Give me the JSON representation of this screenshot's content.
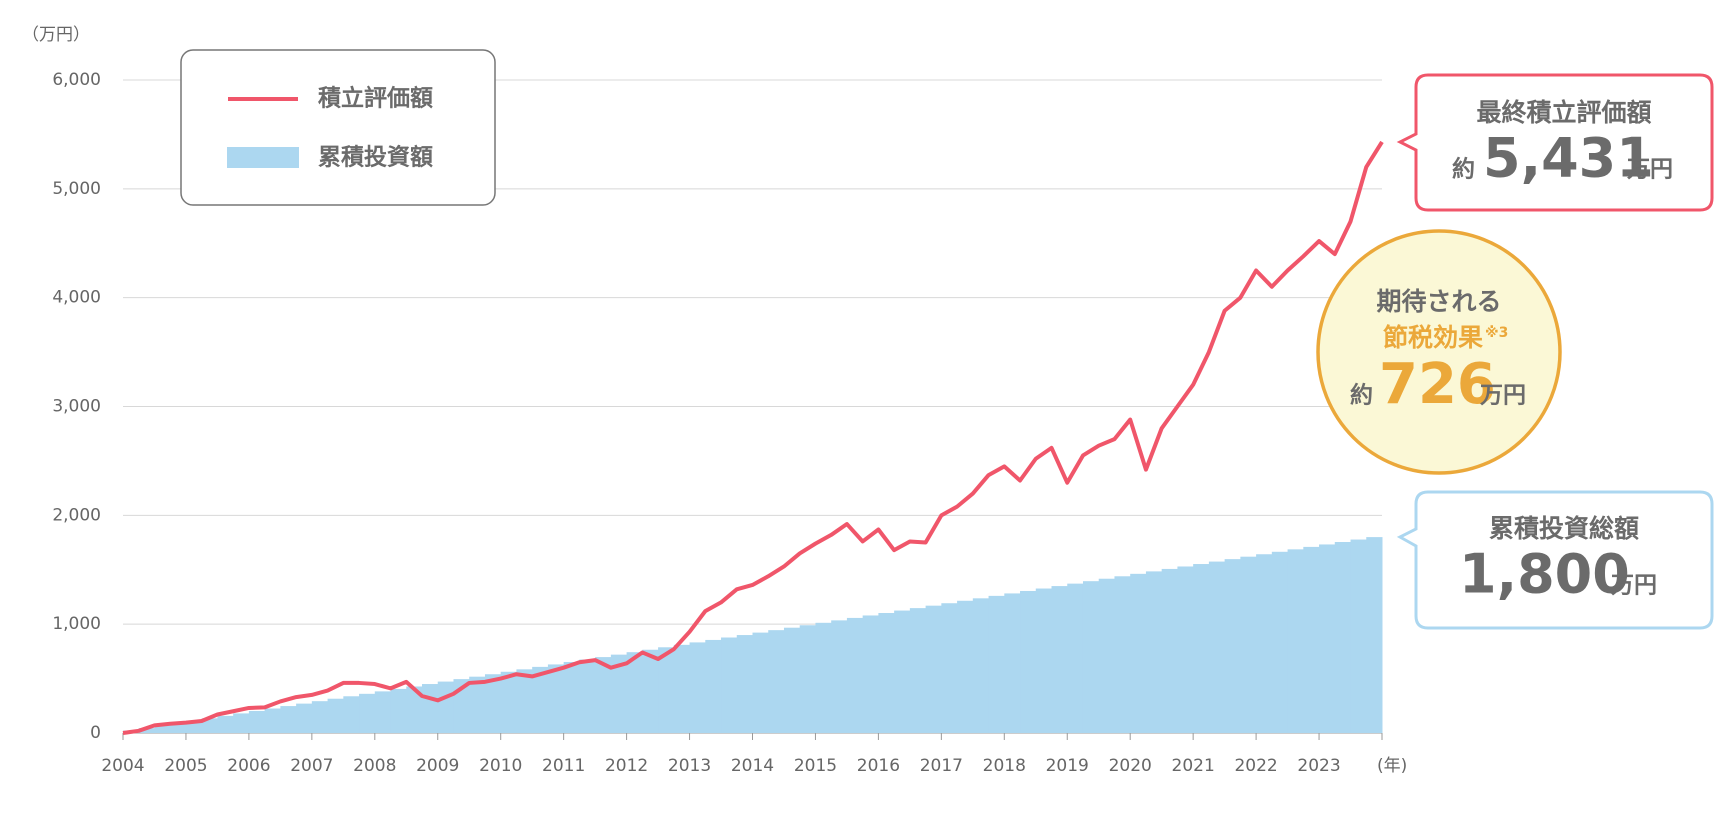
{
  "chart_data": {
    "type": "line",
    "y_label": "（万円）",
    "x_label": "(年)",
    "xlim": [
      2004,
      2024
    ],
    "xticks": [
      2004,
      2005,
      2006,
      2007,
      2008,
      2009,
      2010,
      2011,
      2012,
      2013,
      2014,
      2015,
      2016,
      2017,
      2018,
      2019,
      2020,
      2021,
      2022,
      2023
    ],
    "ylim": [
      0,
      6000
    ],
    "yticks": [
      0,
      {
        "value": 1000,
        "label": "1,000"
      },
      {
        "value": 2000,
        "label": "2,000"
      },
      {
        "value": 3000,
        "label": "3,000"
      },
      {
        "value": 4000,
        "label": "4,000"
      },
      {
        "value": 5000,
        "label": "5,000"
      },
      {
        "value": 6000,
        "label": "6,000"
      }
    ],
    "grid": true,
    "series": [
      {
        "name": "積立評価額",
        "color": "#f0566a",
        "type": "line",
        "x": [
          2004,
          2004.25,
          2004.5,
          2004.75,
          2005,
          2005.25,
          2005.5,
          2005.75,
          2006,
          2006.25,
          2006.5,
          2006.75,
          2007,
          2007.25,
          2007.5,
          2007.75,
          2008,
          2008.25,
          2008.5,
          2008.75,
          2009,
          2009.25,
          2009.5,
          2009.75,
          2010,
          2010.25,
          2010.5,
          2010.75,
          2011,
          2011.25,
          2011.5,
          2011.75,
          2012,
          2012.25,
          2012.5,
          2012.75,
          2013,
          2013.25,
          2013.5,
          2013.75,
          2014,
          2014.25,
          2014.5,
          2014.75,
          2015,
          2015.25,
          2015.5,
          2015.75,
          2016,
          2016.25,
          2016.5,
          2016.75,
          2017,
          2017.25,
          2017.5,
          2017.75,
          2018,
          2018.25,
          2018.5,
          2018.75,
          2019,
          2019.25,
          2019.5,
          2019.75,
          2020,
          2020.25,
          2020.5,
          2020.75,
          2021,
          2021.25,
          2021.5,
          2021.75,
          2022,
          2022.25,
          2022.5,
          2022.75,
          2023,
          2023.25,
          2023.5,
          2023.75,
          2024
        ],
        "values": [
          0,
          20,
          70,
          85,
          95,
          110,
          170,
          200,
          230,
          235,
          290,
          330,
          350,
          390,
          460,
          460,
          450,
          410,
          470,
          340,
          300,
          360,
          460,
          470,
          500,
          540,
          520,
          560,
          600,
          650,
          670,
          600,
          640,
          740,
          680,
          770,
          930,
          1120,
          1200,
          1320,
          1360,
          1440,
          1530,
          1650,
          1740,
          1820,
          1920,
          1760,
          1870,
          1680,
          1760,
          1750,
          2000,
          2080,
          2200,
          2370,
          2450,
          2320,
          2520,
          2620,
          2300,
          2550,
          2640,
          2700,
          2880,
          2420,
          2800,
          3000,
          3200,
          3500,
          3880,
          4000,
          4250,
          4100,
          4250,
          4380,
          4520,
          4400,
          4700,
          5200,
          5431
        ]
      },
      {
        "name": "累積投資額",
        "color": "#acd7f0",
        "type": "area",
        "x": [
          2004,
          2004.25,
          2004.5,
          2004.75,
          2005,
          2005.25,
          2005.5,
          2005.75,
          2006,
          2006.25,
          2006.5,
          2006.75,
          2007,
          2007.25,
          2007.5,
          2007.75,
          2008,
          2008.25,
          2008.5,
          2008.75,
          2009,
          2009.25,
          2009.5,
          2009.75,
          2010,
          2010.25,
          2010.5,
          2010.75,
          2011,
          2011.25,
          2011.5,
          2011.75,
          2012,
          2012.25,
          2012.5,
          2012.75,
          2013,
          2013.25,
          2013.5,
          2013.75,
          2014,
          2014.25,
          2014.5,
          2014.75,
          2015,
          2015.25,
          2015.5,
          2015.75,
          2016,
          2016.25,
          2016.5,
          2016.75,
          2017,
          2017.25,
          2017.5,
          2017.75,
          2018,
          2018.25,
          2018.5,
          2018.75,
          2019,
          2019.25,
          2019.5,
          2019.75,
          2020,
          2020.25,
          2020.5,
          2020.75,
          2021,
          2021.25,
          2021.5,
          2021.75,
          2022,
          2022.25,
          2022.5,
          2022.75,
          2023,
          2023.25,
          2023.5,
          2023.75
        ],
        "values": [
          22.5,
          45,
          67.5,
          90,
          112.5,
          135,
          157.5,
          180,
          202.5,
          225,
          247.5,
          270,
          292.5,
          315,
          337.5,
          360,
          382.5,
          405,
          427.5,
          450,
          472.5,
          495,
          517.5,
          540,
          562.5,
          585,
          607.5,
          630,
          652.5,
          675,
          697.5,
          720,
          742.5,
          765,
          787.5,
          810,
          832.5,
          855,
          877.5,
          900,
          922.5,
          945,
          967.5,
          990,
          1012.5,
          1035,
          1057.5,
          1080,
          1102.5,
          1125,
          1147.5,
          1170,
          1192.5,
          1215,
          1237.5,
          1260,
          1282.5,
          1305,
          1327.5,
          1350,
          1372.5,
          1395,
          1417.5,
          1440,
          1462.5,
          1485,
          1507.5,
          1530,
          1552.5,
          1575,
          1597.5,
          1620,
          1642.5,
          1665,
          1687.5,
          1710,
          1732.5,
          1755,
          1777.5,
          1800
        ]
      }
    ],
    "annotations": [
      {
        "title": "最終積立評価額",
        "prefix": "約",
        "value": "5,431",
        "unit": "万円"
      },
      {
        "title": "期待される",
        "subtitle": "節税効果",
        "note": "※3",
        "prefix": "約",
        "value": "726",
        "unit": "万円"
      },
      {
        "title": "累積投資総額",
        "value": "1,800",
        "unit": "万円"
      }
    ]
  }
}
